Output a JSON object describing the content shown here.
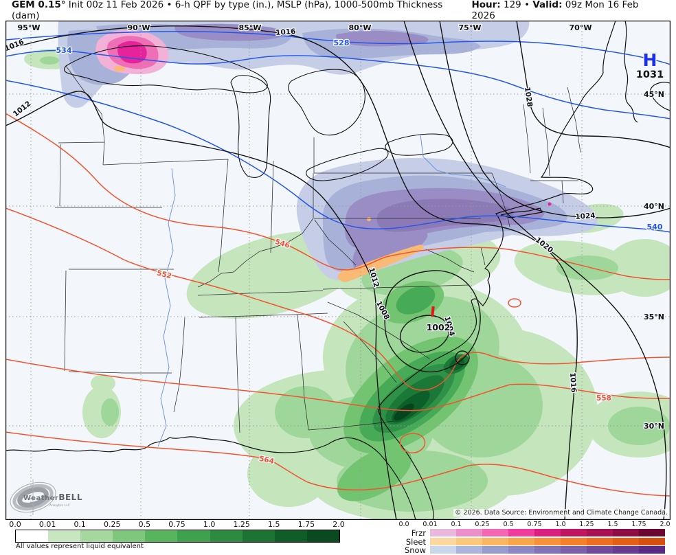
{
  "header": {
    "model": "GEM 0.15°",
    "title_rest": " Init 00z 11 Feb 2026 • 6-h QPF by type (in.), MSLP (hPa), 1000-500mb Thickness (dam)",
    "hour_label": "Hour:",
    "hour_value": "129",
    "separator": "•",
    "valid_label": "Valid:",
    "valid_value": "09z Mon 16 Feb 2026"
  },
  "map": {
    "lon_labels": [
      "95°W",
      "90°W",
      "85°W",
      "80°W",
      "75°W",
      "70°W"
    ],
    "lat_labels": [
      "45°N",
      "40°N",
      "35°N",
      "30°N"
    ],
    "high": {
      "symbol": "H",
      "value": "1031"
    },
    "labels": {
      "msl_1016_left": "1016",
      "msl_1016_top": "1016",
      "msl_1012_left": "1012",
      "msl_1012_mid": "1012",
      "msl_1008": "1008",
      "msl_1004": "1004",
      "low_center": "1002",
      "msl_1020": "1020",
      "msl_1024": "1024",
      "msl_1028": "1028",
      "msl_1016_se": "1016",
      "thk_528": "528",
      "thk_534": "534",
      "thk_540": "540",
      "thk_546": "546",
      "thk_552": "552",
      "thk_558": "558",
      "thk_564": "564"
    },
    "copyright": "© 2026. Data Source: Environment and Climate Change Canada.",
    "logo": {
      "brand_1": "Weather",
      "brand_2": "BELL",
      "brand_sub": "Analytics LLC"
    }
  },
  "legend": {
    "qpf": {
      "ticks": [
        "0.0",
        "0.01",
        "0.1",
        "0.25",
        "0.5",
        "0.75",
        "1.0",
        "1.25",
        "1.5",
        "1.75",
        "2.0"
      ],
      "colors": [
        "#ffffff",
        "#c8e6c0",
        "#a5d79e",
        "#7fc77c",
        "#59b45e",
        "#3fa04e",
        "#2c8a41",
        "#1d7334",
        "#115d2a",
        "#094a21"
      ],
      "note": "All values represent liquid equivalent"
    },
    "ptype": {
      "ticks": [
        "0.0",
        "0.01",
        "0.1",
        "0.25",
        "0.5",
        "0.75",
        "1.0",
        "1.25",
        "1.5",
        "1.75",
        "2.0"
      ],
      "rows": [
        {
          "label": "Frzr",
          "colors": [
            "#eab8dd",
            "#ec8fc8",
            "#f567b2",
            "#f03c9c",
            "#dc1e7e",
            "#c01662",
            "#a81252",
            "#8e0c44",
            "#6b0630"
          ]
        },
        {
          "label": "Sleet",
          "colors": [
            "#fcd8a0",
            "#fbc87c",
            "#fab660",
            "#f9a54a",
            "#f79238",
            "#f5802a",
            "#ee6e20",
            "#e45e16",
            "#d5500e"
          ]
        },
        {
          "label": "Snow",
          "colors": [
            "#c9d6ec",
            "#abb6de",
            "#979ccf",
            "#8c86c2",
            "#8472b6",
            "#7c5faa",
            "#73499c",
            "#683a90",
            "#5b2a84"
          ]
        }
      ]
    }
  }
}
